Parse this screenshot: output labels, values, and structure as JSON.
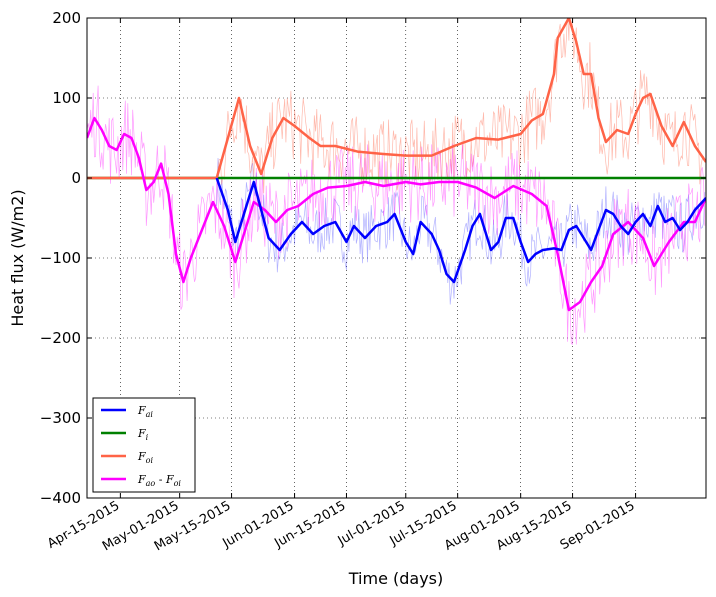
{
  "chart_data": {
    "type": "line",
    "title": "",
    "xlabel": "Time (days)",
    "ylabel": "Heat flux (W/m2)",
    "x_domain": [
      "2015-04-06",
      "2015-09-20"
    ],
    "ylim": [
      -400,
      200
    ],
    "yticks": [
      -400,
      -300,
      -200,
      -100,
      0,
      100,
      200
    ],
    "ytick_labels": [
      "−400",
      "−300",
      "−200",
      "−100",
      "0",
      "100",
      "200"
    ],
    "xticks": [
      "2015-04-15",
      "2015-05-01",
      "2015-05-15",
      "2015-06-01",
      "2015-06-15",
      "2015-07-01",
      "2015-07-15",
      "2015-08-01",
      "2015-08-15",
      "2015-09-01"
    ],
    "xtick_labels": [
      "Apr-15-2015",
      "May-01-2015",
      "May-15-2015",
      "Jun-01-2015",
      "Jun-15-2015",
      "Jul-01-2015",
      "Jul-15-2015",
      "Aug-01-2015",
      "Aug-15-2015",
      "Sep-01-2015"
    ],
    "grid": true,
    "legend_position": "lower-left",
    "series": [
      {
        "name": "F_ai",
        "legend_label": "Fai",
        "color": "#0000ff",
        "x": [
          "2015-05-11",
          "2015-05-14",
          "2015-05-16",
          "2015-05-19",
          "2015-05-21",
          "2015-05-23",
          "2015-05-25",
          "2015-05-28",
          "2015-05-31",
          "2015-06-03",
          "2015-06-06",
          "2015-06-09",
          "2015-06-12",
          "2015-06-15",
          "2015-06-17",
          "2015-06-20",
          "2015-06-23",
          "2015-06-26",
          "2015-06-28",
          "2015-07-01",
          "2015-07-03",
          "2015-07-05",
          "2015-07-08",
          "2015-07-10",
          "2015-07-12",
          "2015-07-14",
          "2015-07-17",
          "2015-07-19",
          "2015-07-21",
          "2015-07-24",
          "2015-07-26",
          "2015-07-28",
          "2015-07-30",
          "2015-08-01",
          "2015-08-03",
          "2015-08-05",
          "2015-08-07",
          "2015-08-10",
          "2015-08-12",
          "2015-08-14",
          "2015-08-16",
          "2015-08-18",
          "2015-08-20",
          "2015-08-22",
          "2015-08-24",
          "2015-08-26",
          "2015-08-28",
          "2015-08-30",
          "2015-09-01",
          "2015-09-03",
          "2015-09-05",
          "2015-09-07",
          "2015-09-09",
          "2015-09-11",
          "2015-09-13",
          "2015-09-15",
          "2015-09-17",
          "2015-09-20"
        ],
        "y": [
          0,
          -40,
          -80,
          -35,
          -5,
          -40,
          -75,
          -90,
          -70,
          -55,
          -70,
          -60,
          -55,
          -80,
          -60,
          -75,
          -60,
          -55,
          -45,
          -80,
          -95,
          -55,
          -70,
          -90,
          -120,
          -130,
          -90,
          -60,
          -45,
          -90,
          -80,
          -50,
          -50,
          -80,
          -105,
          -95,
          -90,
          -88,
          -90,
          -65,
          -60,
          -75,
          -90,
          -65,
          -40,
          -45,
          -60,
          -70,
          -55,
          -45,
          -60,
          -35,
          -55,
          -50,
          -65,
          -55,
          -40,
          -25
        ]
      },
      {
        "name": "F_i",
        "legend_label": "Fi",
        "color": "#008000",
        "x": [
          "2015-04-06",
          "2015-09-20"
        ],
        "y": [
          0,
          0
        ]
      },
      {
        "name": "F_oi",
        "legend_label": "Foi",
        "color": "#ff6347",
        "x": [
          "2015-04-06",
          "2015-05-11",
          "2015-05-14",
          "2015-05-17",
          "2015-05-20",
          "2015-05-23",
          "2015-05-26",
          "2015-05-29",
          "2015-06-01",
          "2015-06-05",
          "2015-06-08",
          "2015-06-12",
          "2015-06-18",
          "2015-06-25",
          "2015-07-01",
          "2015-07-08",
          "2015-07-14",
          "2015-07-20",
          "2015-07-26",
          "2015-08-01",
          "2015-08-04",
          "2015-08-07",
          "2015-08-10",
          "2015-08-11",
          "2015-08-14",
          "2015-08-16",
          "2015-08-18",
          "2015-08-20",
          "2015-08-22",
          "2015-08-24",
          "2015-08-27",
          "2015-08-30",
          "2015-09-01",
          "2015-09-03",
          "2015-09-05",
          "2015-09-08",
          "2015-09-11",
          "2015-09-14",
          "2015-09-17",
          "2015-09-20"
        ],
        "y": [
          0,
          0,
          50,
          100,
          40,
          5,
          50,
          75,
          65,
          50,
          40,
          40,
          33,
          30,
          28,
          28,
          40,
          50,
          48,
          55,
          72,
          80,
          130,
          175,
          200,
          170,
          130,
          130,
          75,
          45,
          60,
          55,
          80,
          100,
          105,
          65,
          40,
          70,
          40,
          20
        ]
      },
      {
        "name": "F_ao - F_oi",
        "legend_label": "Fao - Foi",
        "color": "#ff00ff",
        "x": [
          "2015-04-06",
          "2015-04-08",
          "2015-04-10",
          "2015-04-12",
          "2015-04-14",
          "2015-04-16",
          "2015-04-18",
          "2015-04-20",
          "2015-04-22",
          "2015-04-24",
          "2015-04-26",
          "2015-04-28",
          "2015-04-30",
          "2015-05-02",
          "2015-05-04",
          "2015-05-07",
          "2015-05-10",
          "2015-05-13",
          "2015-05-16",
          "2015-05-19",
          "2015-05-21",
          "2015-05-24",
          "2015-05-27",
          "2015-05-30",
          "2015-06-02",
          "2015-06-06",
          "2015-06-10",
          "2015-06-15",
          "2015-06-20",
          "2015-06-25",
          "2015-07-01",
          "2015-07-05",
          "2015-07-10",
          "2015-07-15",
          "2015-07-20",
          "2015-07-25",
          "2015-07-30",
          "2015-08-04",
          "2015-08-08",
          "2015-08-11",
          "2015-08-14",
          "2015-08-17",
          "2015-08-20",
          "2015-08-23",
          "2015-08-26",
          "2015-08-30",
          "2015-09-03",
          "2015-09-06",
          "2015-09-10",
          "2015-09-14",
          "2015-09-17",
          "2015-09-20"
        ],
        "y": [
          50,
          75,
          60,
          40,
          35,
          55,
          50,
          25,
          -15,
          -5,
          18,
          -20,
          -95,
          -130,
          -100,
          -65,
          -30,
          -60,
          -105,
          -60,
          -30,
          -40,
          -55,
          -40,
          -35,
          -20,
          -12,
          -10,
          -5,
          -10,
          -5,
          -8,
          -5,
          -5,
          -12,
          -25,
          -10,
          -20,
          -35,
          -95,
          -165,
          -155,
          -130,
          -110,
          -70,
          -55,
          -75,
          -110,
          -80,
          -55,
          -55,
          -25
        ]
      }
    ]
  }
}
